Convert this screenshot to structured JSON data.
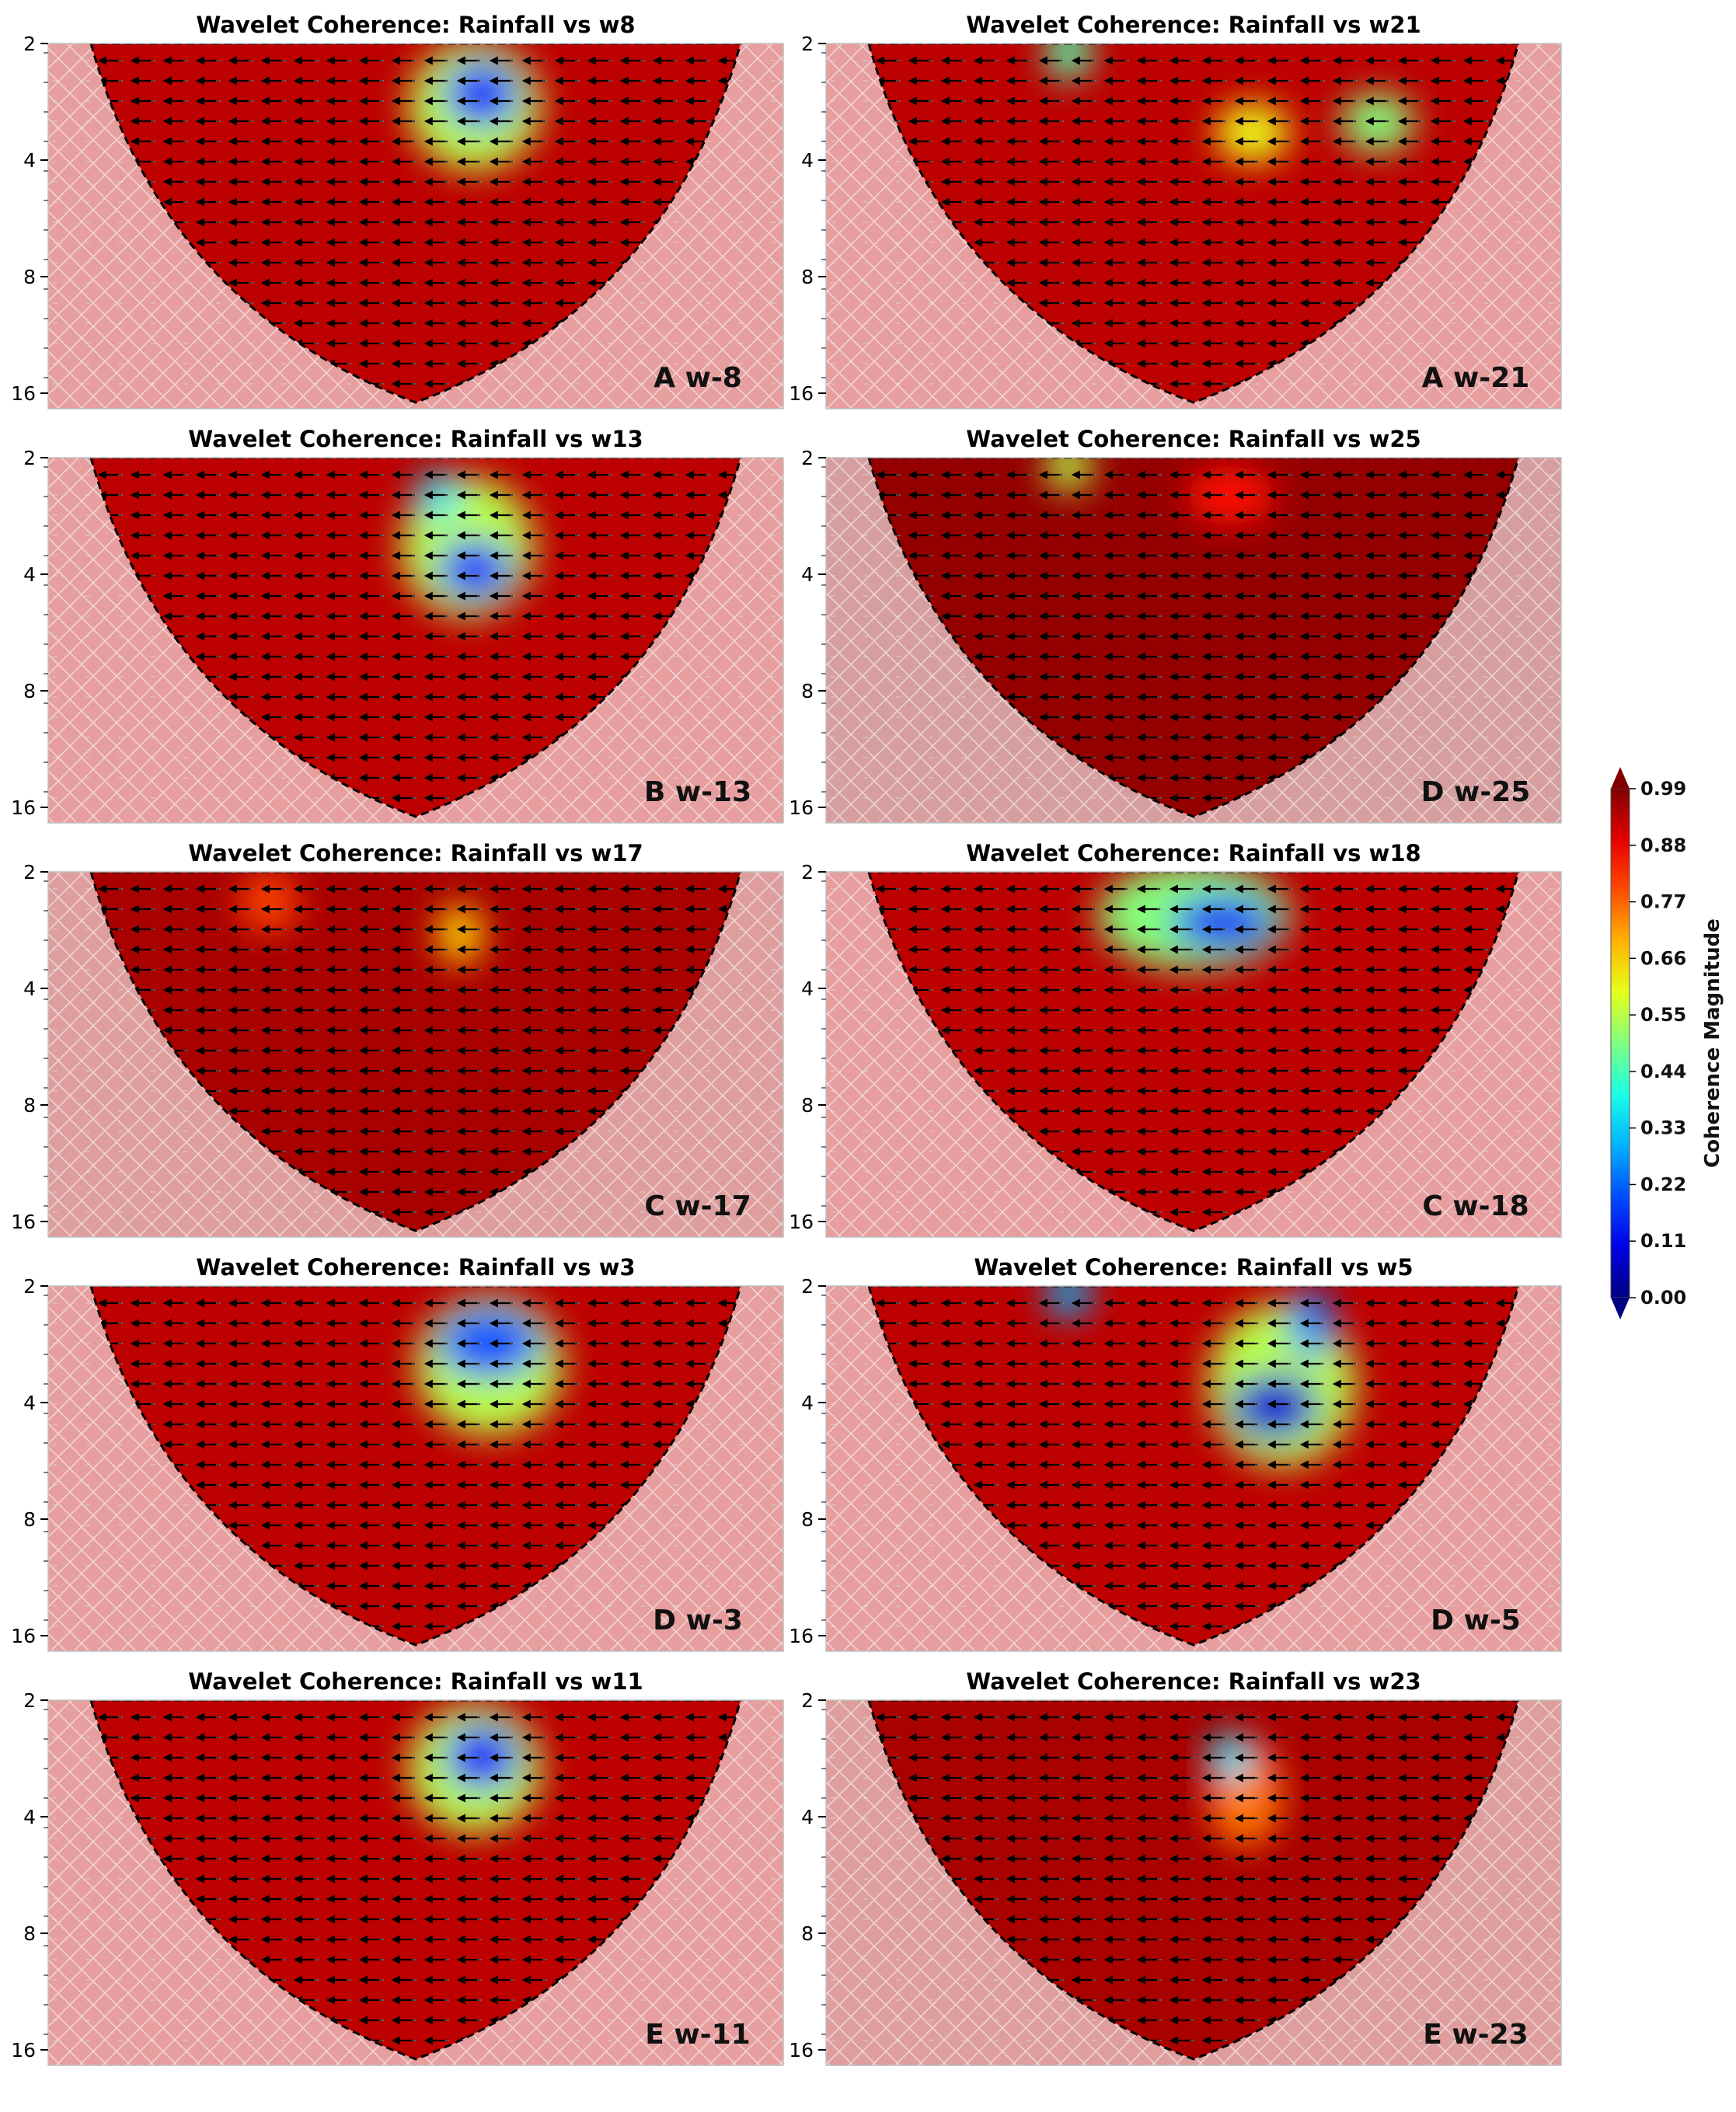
{
  "chart_data": {
    "type": "heatmap",
    "plot_kind": "wavelet coherence",
    "y_axis": {
      "label": "",
      "scale": "log2",
      "range": [
        2,
        16
      ],
      "tick_values": [
        2,
        4,
        8,
        16
      ],
      "tick_labels": [
        "2",
        "4",
        "8",
        "16"
      ]
    },
    "colorbar": {
      "label": "Coherence Magnitude",
      "colormap": "jet",
      "range": [
        0.0,
        0.99
      ],
      "tick_values": [
        0.99,
        0.88,
        0.77,
        0.66,
        0.55,
        0.44,
        0.33,
        0.22,
        0.11,
        0.0
      ],
      "tick_labels": [
        "0.99",
        "0.88",
        "0.77",
        "0.66",
        "0.55",
        "0.44",
        "0.33",
        "0.22",
        "0.11",
        "0.00"
      ]
    },
    "panels": [
      {
        "title": "Wavelet Coherence: Rainfall vs w8",
        "tag": "A w-8",
        "background": 0.93,
        "low_coherence_regions": [
          {
            "x": 0.59,
            "period": 2.7,
            "coherence": 0.15,
            "sx": 0.05,
            "sy": 0.28
          },
          {
            "x": 0.58,
            "period": 2.9,
            "coherence": 0.55,
            "sx": 0.09,
            "sy": 0.55
          }
        ]
      },
      {
        "title": "Wavelet Coherence: Rainfall vs w21",
        "tag": "A w-21",
        "background": 0.93,
        "low_coherence_regions": [
          {
            "x": 0.33,
            "period": 2.1,
            "coherence": 0.45,
            "sx": 0.03,
            "sy": 0.25
          },
          {
            "x": 0.75,
            "period": 3.2,
            "coherence": 0.5,
            "sx": 0.05,
            "sy": 0.25
          },
          {
            "x": 0.58,
            "period": 3.4,
            "coherence": 0.6,
            "sx": 0.05,
            "sy": 0.25
          }
        ]
      },
      {
        "title": "Wavelet Coherence: Rainfall vs w13",
        "tag": "B w-13",
        "background": 0.93,
        "low_coherence_regions": [
          {
            "x": 0.58,
            "period": 3.9,
            "coherence": 0.15,
            "sx": 0.05,
            "sy": 0.25
          },
          {
            "x": 0.53,
            "period": 2.5,
            "coherence": 0.35,
            "sx": 0.03,
            "sy": 0.2
          },
          {
            "x": 0.57,
            "period": 3.4,
            "coherence": 0.55,
            "sx": 0.09,
            "sy": 0.6
          }
        ]
      },
      {
        "title": "Wavelet Coherence: Rainfall vs w25",
        "tag": "D w-25",
        "background": 0.97,
        "low_coherence_regions": [
          {
            "x": 0.33,
            "period": 2.1,
            "coherence": 0.55,
            "sx": 0.03,
            "sy": 0.22
          },
          {
            "x": 0.55,
            "period": 2.5,
            "coherence": 0.85,
            "sx": 0.06,
            "sy": 0.25
          }
        ]
      },
      {
        "title": "Wavelet Coherence: Rainfall vs w17",
        "tag": "C w-17",
        "background": 0.95,
        "low_coherence_regions": [
          {
            "x": 0.56,
            "period": 2.9,
            "coherence": 0.65,
            "sx": 0.03,
            "sy": 0.25
          },
          {
            "x": 0.3,
            "period": 2.4,
            "coherence": 0.8,
            "sx": 0.04,
            "sy": 0.25
          }
        ]
      },
      {
        "title": "Wavelet Coherence: Rainfall vs w18",
        "tag": "C w-18",
        "background": 0.93,
        "low_coherence_regions": [
          {
            "x": 0.54,
            "period": 2.7,
            "coherence": 0.12,
            "sx": 0.07,
            "sy": 0.22
          },
          {
            "x": 0.5,
            "period": 2.6,
            "coherence": 0.5,
            "sx": 0.13,
            "sy": 0.45
          }
        ]
      },
      {
        "title": "Wavelet Coherence: Rainfall vs w3",
        "tag": "D w-3",
        "background": 0.93,
        "low_coherence_regions": [
          {
            "x": 0.6,
            "period": 2.8,
            "coherence": 0.2,
            "sx": 0.07,
            "sy": 0.3
          },
          {
            "x": 0.6,
            "period": 3.2,
            "coherence": 0.55,
            "sx": 0.1,
            "sy": 0.6
          }
        ]
      },
      {
        "title": "Wavelet Coherence: Rainfall vs w5",
        "tag": "D w-5",
        "background": 0.93,
        "low_coherence_regions": [
          {
            "x": 0.61,
            "period": 4.1,
            "coherence": 0.08,
            "sx": 0.06,
            "sy": 0.28
          },
          {
            "x": 0.66,
            "period": 2.5,
            "coherence": 0.25,
            "sx": 0.03,
            "sy": 0.3
          },
          {
            "x": 0.33,
            "period": 2.1,
            "coherence": 0.3,
            "sx": 0.03,
            "sy": 0.2
          },
          {
            "x": 0.62,
            "period": 3.6,
            "coherence": 0.55,
            "sx": 0.1,
            "sy": 0.7
          }
        ]
      },
      {
        "title": "Wavelet Coherence: Rainfall vs w11",
        "tag": "E w-11",
        "background": 0.93,
        "low_coherence_regions": [
          {
            "x": 0.59,
            "period": 2.8,
            "coherence": 0.12,
            "sx": 0.05,
            "sy": 0.28
          },
          {
            "x": 0.58,
            "period": 3.0,
            "coherence": 0.55,
            "sx": 0.09,
            "sy": 0.55
          }
        ]
      },
      {
        "title": "Wavelet Coherence: Rainfall vs w23",
        "tag": "E w-23",
        "background": 0.95,
        "low_coherence_regions": [
          {
            "x": 0.55,
            "period": 2.8,
            "coherence": 0.35,
            "sx": 0.03,
            "sy": 0.2
          },
          {
            "x": 0.57,
            "period": 3.5,
            "coherence": 0.75,
            "sx": 0.05,
            "sy": 0.45
          }
        ]
      }
    ]
  }
}
